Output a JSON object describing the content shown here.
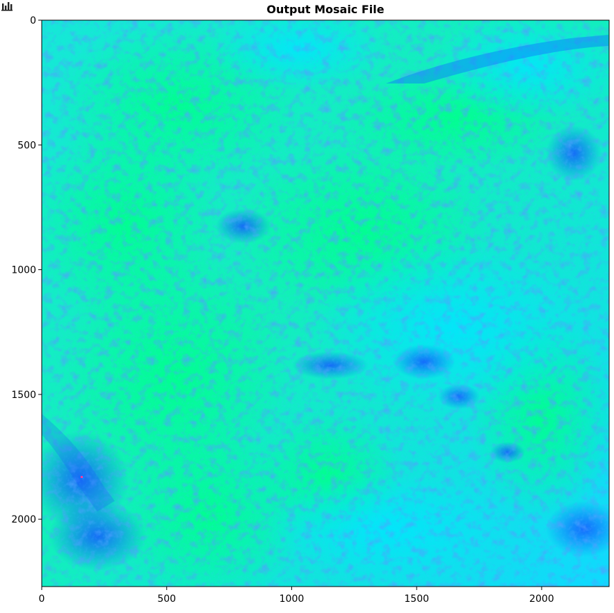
{
  "title": "Output Mosaic File",
  "toolbar": {
    "icon": "bar-chart-icon"
  },
  "colormap": {
    "name": "winter-like",
    "colors": [
      "#0000ff",
      "#00ffff",
      "#00ff80"
    ]
  },
  "image": {
    "x_ticks": [
      "0",
      "500",
      "1000",
      "1500",
      "2000"
    ],
    "y_ticks": [
      "0",
      "500",
      "1000",
      "1500",
      "2000"
    ],
    "x_tick_values": [
      0,
      500,
      1000,
      1500,
      2000
    ],
    "y_tick_values": [
      0,
      500,
      1000,
      1500,
      2000
    ],
    "xlim": [
      0,
      2270
    ],
    "ylim": [
      2270,
      0
    ]
  }
}
